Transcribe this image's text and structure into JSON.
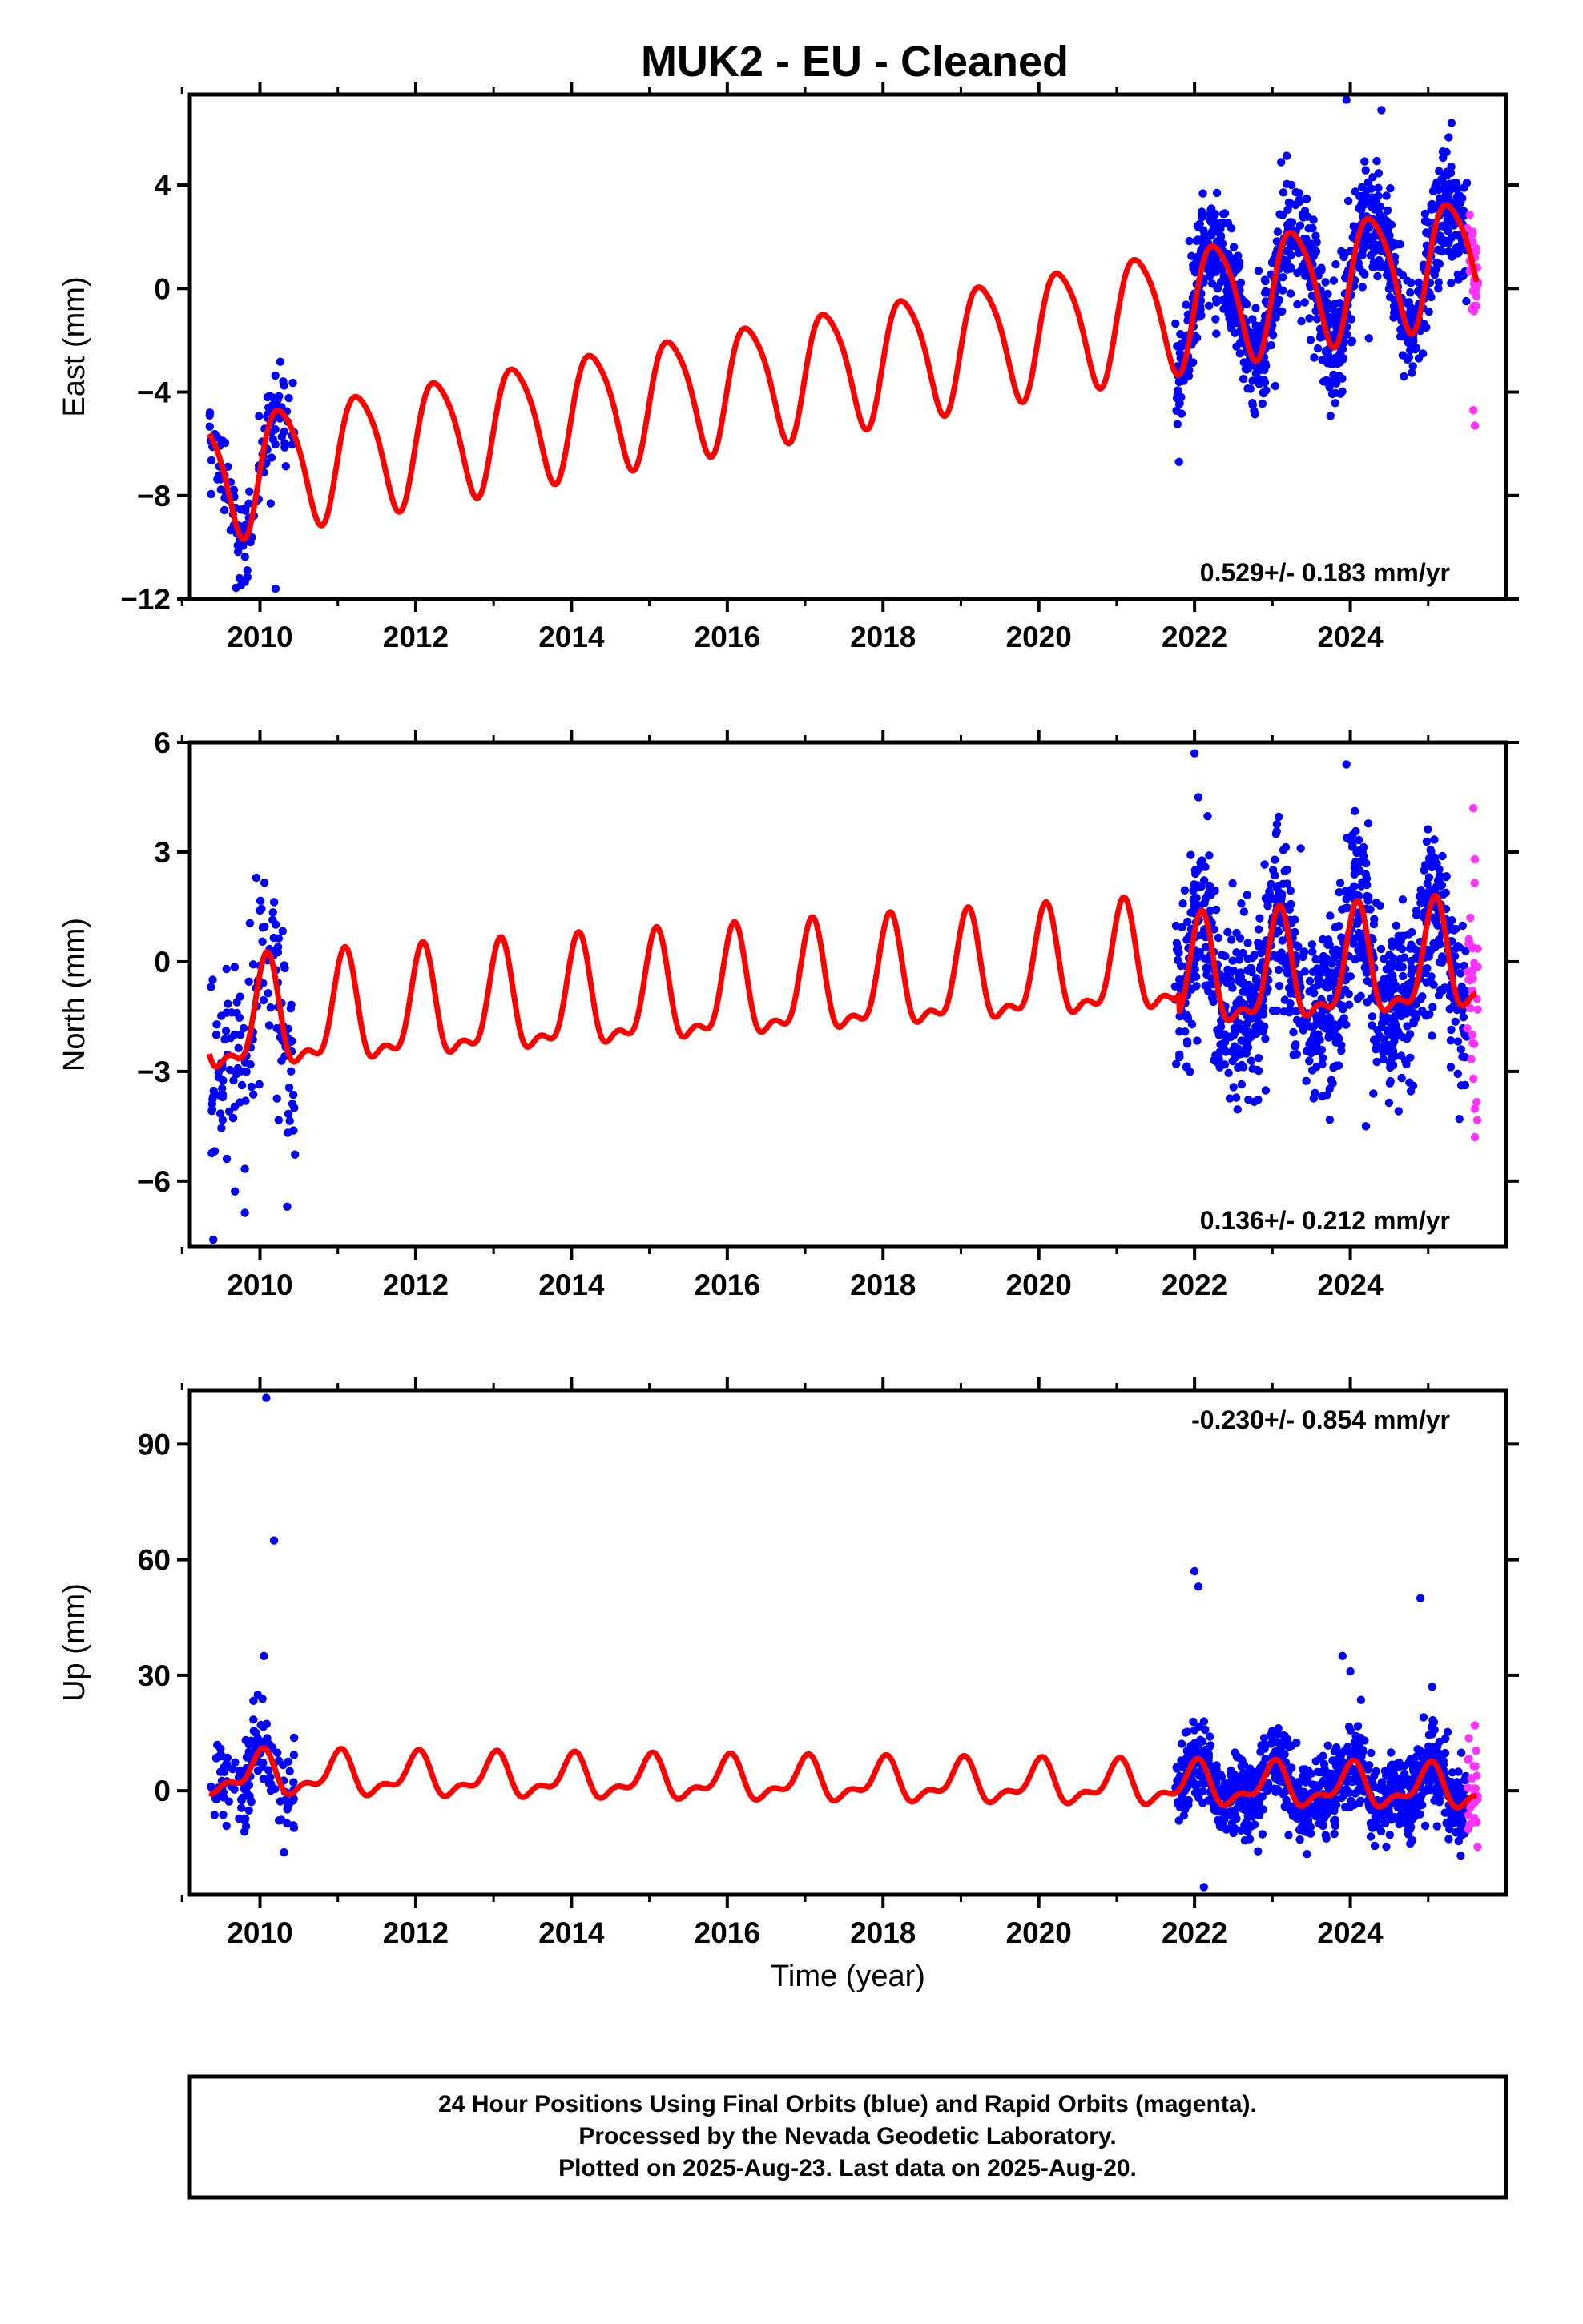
{
  "colors": {
    "final_orbits": "#0000ff",
    "rapid_orbits": "#ff33ff",
    "model": "#ff0000",
    "frame": "#000000"
  },
  "caption": {
    "line1": "24 Hour Positions Using Final Orbits (blue) and Rapid Orbits (magenta).",
    "line2": "Processed by the Nevada Geodetic Laboratory.",
    "line3": "Plotted on 2025-Aug-23. Last data on 2025-Aug-20."
  },
  "chart_data": [
    {
      "type": "scatter",
      "title": "MUK2  - EU - Cleaned",
      "ylabel": "East (mm)",
      "xlabel": "",
      "xlim": [
        2009.1,
        2026.0
      ],
      "ylim": [
        -12,
        7.5
      ],
      "xticks": [
        "2010",
        "2012",
        "2014",
        "2016",
        "2018",
        "2020",
        "2022",
        "2024"
      ],
      "yticks": [
        "4",
        "0",
        "−4",
        "−8",
        "−12"
      ],
      "rate_label": "0.529+/- 0.183 mm/yr",
      "model": {
        "start": 2009.35,
        "end": 2025.62,
        "v0": -7.3,
        "rate": 0.529,
        "sin": 2.3,
        "cos": -0.3,
        "sin2": 0.3,
        "cos2": 0.2,
        "offset_2021_8": 0.0
      },
      "final_segments": [
        {
          "from": 2009.35,
          "to": 2010.45,
          "scatter": 0.8,
          "n": 140
        },
        {
          "from": 2021.75,
          "to": 2025.5,
          "scatter": 1.1,
          "n": 1100
        }
      ],
      "final_outliers": [
        [
          2010.2,
          -11.6
        ],
        [
          2023.95,
          7.3
        ],
        [
          2024.4,
          6.9
        ],
        [
          2025.3,
          6.4
        ],
        [
          2021.8,
          -6.7
        ]
      ],
      "rapid": {
        "from": 2025.5,
        "to": 2025.64,
        "n": 28,
        "scatter": 1.0
      },
      "rapid_outliers": [
        [
          2025.58,
          -4.7
        ],
        [
          2025.6,
          -5.3
        ],
        [
          2025.56,
          -0.8
        ],
        [
          2025.62,
          -0.3
        ]
      ]
    },
    {
      "type": "scatter",
      "title": "",
      "ylabel": "North (mm)",
      "xlabel": "",
      "xlim": [
        2009.1,
        2026.0
      ],
      "ylim": [
        -7.8,
        6.0
      ],
      "xticks": [
        "2010",
        "2012",
        "2014",
        "2016",
        "2018",
        "2020",
        "2022",
        "2024"
      ],
      "yticks": [
        "6",
        "3",
        "0",
        "−3",
        "−6"
      ],
      "rate_label": "0.136+/- 0.212 mm/yr",
      "model": {
        "start": 2009.35,
        "end": 2025.62,
        "v0": -1.8,
        "rate": 0.136,
        "sin": 0.7,
        "cos": 1.2,
        "sin2": 0.55,
        "cos2": 0.2,
        "offset_2021_8": -0.5
      },
      "final_segments": [
        {
          "from": 2009.35,
          "to": 2010.45,
          "scatter": 1.4,
          "n": 140
        },
        {
          "from": 2021.75,
          "to": 2025.5,
          "scatter": 1.15,
          "n": 1100
        }
      ],
      "final_outliers": [
        [
          2009.4,
          -7.6
        ],
        [
          2010.0,
          1.4
        ],
        [
          2010.35,
          -6.7
        ],
        [
          2022.0,
          5.7
        ],
        [
          2022.05,
          4.5
        ],
        [
          2023.95,
          5.4
        ],
        [
          2024.2,
          -4.5
        ],
        [
          2025.4,
          -4.3
        ]
      ],
      "rapid": {
        "from": 2025.5,
        "to": 2025.64,
        "n": 28,
        "scatter": 1.8
      },
      "rapid_outliers": [
        [
          2025.58,
          4.2
        ],
        [
          2025.6,
          2.8
        ],
        [
          2025.6,
          -4.8
        ],
        [
          2025.58,
          -3.2
        ]
      ]
    },
    {
      "type": "scatter",
      "title": "",
      "ylabel": "Up (mm)",
      "xlabel": "Time (year)",
      "xlim": [
        2009.1,
        2026.0
      ],
      "ylim": [
        -27,
        104
      ],
      "xticks": [
        "2010",
        "2012",
        "2014",
        "2016",
        "2018",
        "2020",
        "2022",
        "2024"
      ],
      "yticks": [
        "90",
        "60",
        "30",
        "0"
      ],
      "rate_label": "-0.230+/- 0.854 mm/yr",
      "model": {
        "start": 2009.35,
        "end": 2025.62,
        "v0": 4.2,
        "rate": -0.23,
        "sin": 0.2,
        "cos": 4.8,
        "sin2": 1.7,
        "cos2": 1.8,
        "offset_2021_8": 0.0
      },
      "final_segments": [
        {
          "from": 2009.35,
          "to": 2010.45,
          "scatter": 5.5,
          "n": 140
        },
        {
          "from": 2021.75,
          "to": 2025.5,
          "scatter": 5.0,
          "n": 1100
        }
      ],
      "final_outliers": [
        [
          2010.08,
          102
        ],
        [
          2010.18,
          65
        ],
        [
          2010.05,
          35
        ],
        [
          2022.0,
          57
        ],
        [
          2022.05,
          53
        ],
        [
          2023.9,
          35
        ],
        [
          2024.0,
          31
        ],
        [
          2024.9,
          50
        ],
        [
          2025.05,
          27
        ],
        [
          2022.12,
          -25
        ]
      ],
      "rapid": {
        "from": 2025.5,
        "to": 2025.64,
        "n": 28,
        "scatter": 6.5
      },
      "rapid_outliers": [
        [
          2025.6,
          17
        ],
        [
          2025.62,
          -8
        ]
      ]
    }
  ]
}
